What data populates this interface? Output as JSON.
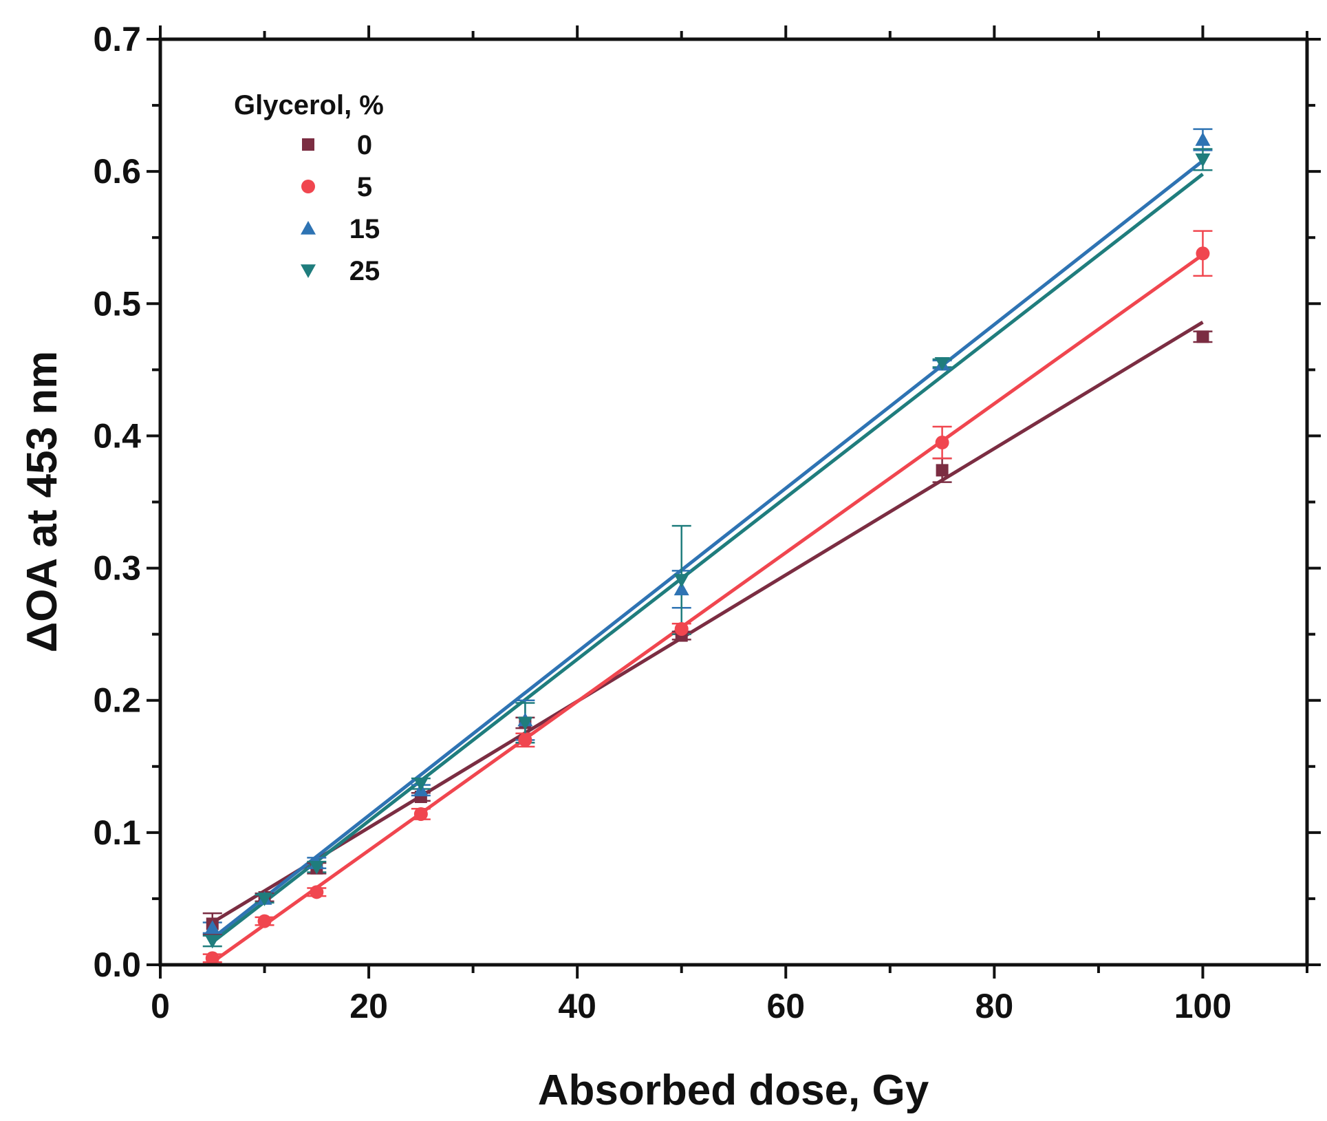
{
  "chart_data": {
    "type": "scatter",
    "title": "",
    "xlabel": "Absorbed dose, Gy",
    "ylabel": "ΔOA at 453 nm",
    "xlim": [
      0,
      110
    ],
    "ylim": [
      0,
      0.7
    ],
    "x_ticks": [
      0,
      20,
      40,
      60,
      80,
      100
    ],
    "x_tick_labels": [
      "0",
      "20",
      "40",
      "60",
      "80",
      "100"
    ],
    "y_ticks": [
      0.0,
      0.1,
      0.2,
      0.3,
      0.4,
      0.5,
      0.6,
      0.7
    ],
    "y_tick_labels": [
      "0.0",
      "0.1",
      "0.2",
      "0.3",
      "0.4",
      "0.5",
      "0.6",
      "0.7"
    ],
    "grid": false,
    "legend": {
      "title": "Glycerol, %",
      "position": "top-left"
    },
    "x": [
      5,
      10,
      15,
      25,
      35,
      50,
      75,
      100
    ],
    "series": [
      {
        "name": "0",
        "marker": "square",
        "color": "#7b2d42",
        "values": [
          0.031,
          0.051,
          0.073,
          0.127,
          0.183,
          0.249,
          0.374,
          0.475
        ],
        "errors": [
          0.008,
          0.003,
          0.004,
          0.003,
          0.004,
          0.003,
          0.009,
          0.004
        ],
        "fit": {
          "x": [
            5,
            100
          ],
          "y": [
            0.032,
            0.486
          ]
        }
      },
      {
        "name": "5",
        "marker": "circle",
        "color": "#f0464f",
        "values": [
          0.005,
          0.033,
          0.055,
          0.114,
          0.17,
          0.254,
          0.395,
          0.538
        ],
        "errors": [
          0.003,
          0.003,
          0.003,
          0.004,
          0.005,
          0.004,
          0.012,
          0.017
        ],
        "fit": {
          "x": [
            5,
            100
          ],
          "y": [
            0.002,
            0.537
          ]
        }
      },
      {
        "name": "15",
        "marker": "triangle-up",
        "color": "#2e73b3",
        "values": [
          0.028,
          0.05,
          0.077,
          0.132,
          0.185,
          0.284,
          0.454,
          0.624
        ],
        "errors": [
          0.004,
          0.003,
          0.004,
          0.004,
          0.015,
          0.014,
          0.003,
          0.008
        ],
        "fit": {
          "x": [
            5,
            100
          ],
          "y": [
            0.02,
            0.608
          ]
        }
      },
      {
        "name": "25",
        "marker": "triangle-down",
        "color": "#1f7d7d",
        "values": [
          0.018,
          0.05,
          0.074,
          0.137,
          0.183,
          0.291,
          0.455,
          0.609
        ],
        "errors": [
          0.004,
          0.003,
          0.004,
          0.004,
          0.015,
          0.041,
          0.003,
          0.008
        ],
        "fit": {
          "x": [
            5,
            100
          ],
          "y": [
            0.017,
            0.598
          ]
        }
      }
    ]
  }
}
